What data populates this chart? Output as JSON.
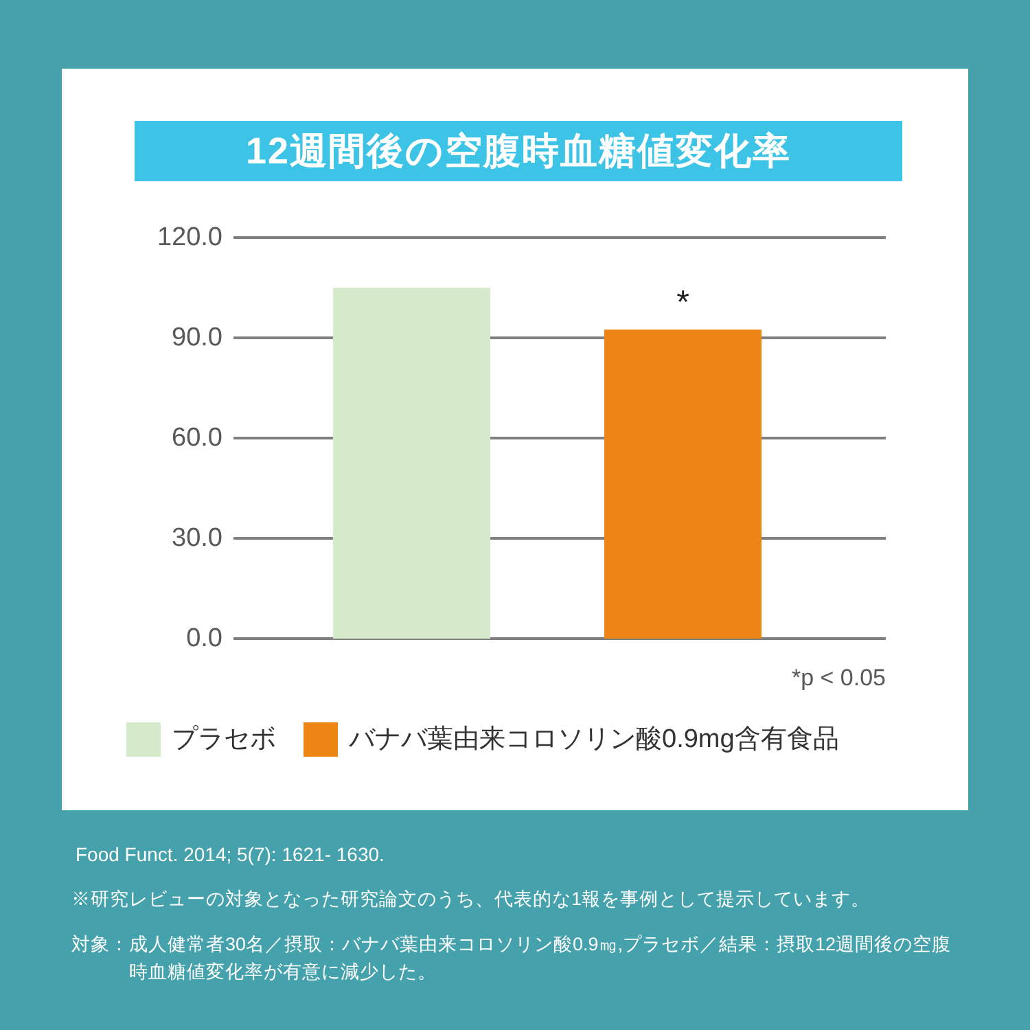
{
  "chart_data": {
    "type": "bar",
    "title": "12週間後の空腹時血糖値変化率",
    "categories": [
      null,
      null
    ],
    "series": [
      {
        "name": "プラセボ",
        "color": "#d6ebcb",
        "values": [
          105,
          null
        ]
      },
      {
        "name": "バナバ葉由来コロソリン酸0.9mg含有食品",
        "color": "#ec8513",
        "values": [
          null,
          92.5
        ],
        "value_labels": [
          null,
          "*"
        ]
      }
    ],
    "ylim": [
      0,
      120
    ],
    "yticks": [
      {
        "value": 0,
        "label": "0.0"
      },
      {
        "value": 30,
        "label": "30.0"
      },
      {
        "value": 60,
        "label": "60.0"
      },
      {
        "value": 90,
        "label": "90.0"
      },
      {
        "value": 120,
        "label": "120.0"
      }
    ],
    "grid": "y",
    "legend": "bottom",
    "annotations": [
      "*p < 0.05",
      "Food Funct. 2014; 5(7): 1621- 1630.",
      "※研究レビューの対象となった研究論文のうち、代表的な1報を事例として提示しています。",
      "対象：成人健常者30名／摂取：バナバ葉由来コロソリン酸0.9㎎,プラセボ／結果：摂取12週間後の空腹時血糖値変化率が有意に減少した。"
    ]
  }
}
